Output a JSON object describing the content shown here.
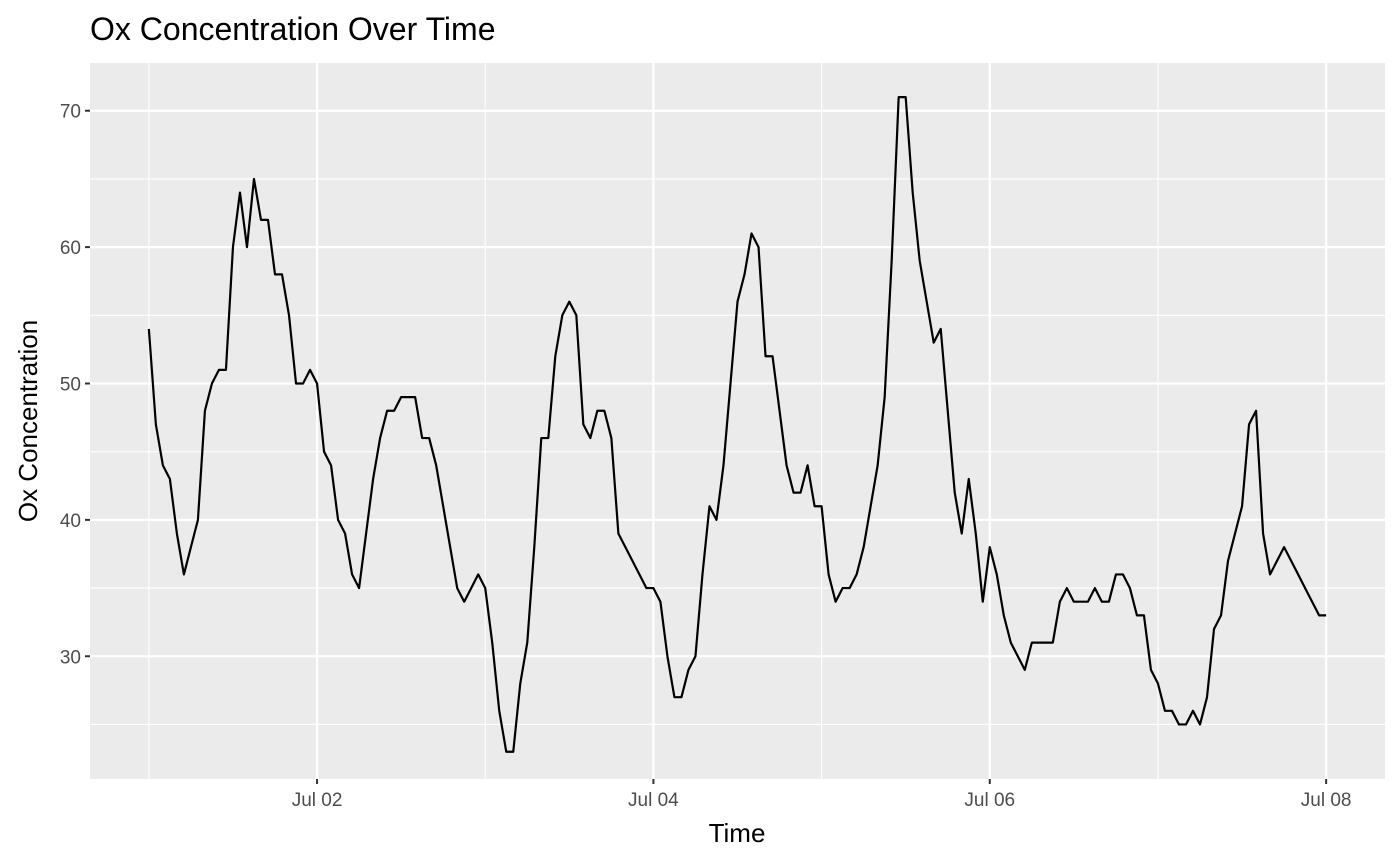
{
  "chart_data": {
    "type": "line",
    "title": "Ox Concentration Over Time",
    "xlabel": "Time",
    "ylabel": "Ox Concentration",
    "x_start": "2011-07-01 00:00",
    "x_step_hours": 1,
    "xlim": [
      "2011-07-01 00:00",
      "2011-07-08 00:00"
    ],
    "ylim": [
      21,
      73.5
    ],
    "x_ticks": [
      {
        "label": "Jul 02",
        "value": "2011-07-02 00:00"
      },
      {
        "label": "Jul 04",
        "value": "2011-07-04 00:00"
      },
      {
        "label": "Jul 06",
        "value": "2011-07-06 00:00"
      },
      {
        "label": "Jul 08",
        "value": "2011-07-08 00:00"
      }
    ],
    "y_ticks": [
      30,
      40,
      50,
      60,
      70
    ],
    "grid": true,
    "background": "#ebebeb",
    "grid_color": "#ffffff",
    "line_color": "#000000",
    "series": [
      {
        "values": [
          54,
          47,
          44,
          43,
          39,
          36,
          38,
          40,
          48,
          50,
          51,
          51,
          60,
          64,
          60,
          65,
          62,
          62,
          58,
          58,
          55,
          50,
          50,
          51,
          50,
          45,
          44,
          40,
          39,
          36,
          35,
          39,
          43,
          46,
          48,
          48,
          49,
          49,
          49,
          46,
          46,
          44,
          41,
          38,
          35,
          34,
          35,
          36,
          35,
          31,
          26,
          23,
          23,
          28,
          31,
          38,
          46,
          46,
          52,
          55,
          56,
          55,
          47,
          46,
          48,
          48,
          46,
          39,
          38,
          37,
          36,
          35,
          35,
          34,
          30,
          27,
          27,
          29,
          30,
          36,
          41,
          40,
          44,
          50,
          56,
          58,
          61,
          60,
          52,
          52,
          48,
          44,
          42,
          42,
          44,
          41,
          41,
          36,
          34,
          35,
          35,
          36,
          38,
          41,
          44,
          49,
          59,
          71,
          71,
          64,
          59,
          56,
          53,
          54,
          48,
          42,
          39,
          43,
          39,
          34,
          38,
          36,
          33,
          31,
          30,
          29,
          31,
          31,
          31,
          31,
          34,
          35,
          34,
          34,
          34,
          35,
          34,
          34,
          36,
          36,
          35,
          33,
          33,
          29,
          28,
          26,
          26,
          25,
          25,
          26,
          25,
          27,
          32,
          33,
          37,
          39,
          41,
          47,
          48,
          39,
          36,
          37,
          38,
          37,
          36,
          35,
          34,
          33,
          33
        ]
      }
    ]
  }
}
